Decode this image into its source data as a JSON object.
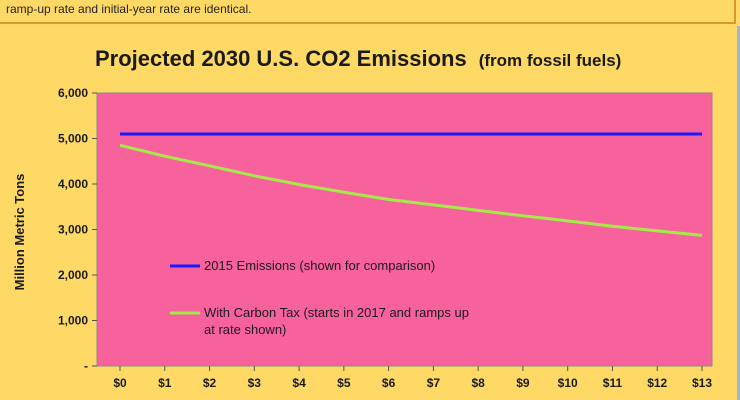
{
  "note": {
    "text": "ramp-up rate and initial-year rate are identical."
  },
  "chart_data": {
    "type": "line",
    "title": "Projected 2030 U.S. CO2 Emissions",
    "subtitle": "(from fossil fuels)",
    "xlabel": "",
    "ylabel": "Million Metric Tons",
    "categories": [
      "$0",
      "$1",
      "$2",
      "$3",
      "$4",
      "$5",
      "$6",
      "$7",
      "$8",
      "$9",
      "$10",
      "$11",
      "$12",
      "$13"
    ],
    "y_tick_labels": [
      "-",
      "1,000",
      "2,000",
      "3,000",
      "4,000",
      "5,000",
      "6,000"
    ],
    "y_ticks": [
      0,
      1000,
      2000,
      3000,
      4000,
      5000,
      6000
    ],
    "ylim": [
      0,
      6000
    ],
    "grid": false,
    "legend_placement": "inside, lower-left",
    "plot_background": "#f7629c",
    "series": [
      {
        "name": "2015 Emissions (shown for comparison)",
        "color": "#1a1aff",
        "values": [
          5100,
          5100,
          5100,
          5100,
          5100,
          5100,
          5100,
          5100,
          5100,
          5100,
          5100,
          5100,
          5100,
          5100
        ]
      },
      {
        "name": "With Carbon Tax (starts in 2017 and ramps up at rate shown)",
        "color": "#a6ea4a",
        "values": [
          4850,
          4610,
          4400,
          4180,
          3990,
          3820,
          3660,
          3540,
          3420,
          3300,
          3190,
          3070,
          2970,
          2870
        ]
      }
    ]
  }
}
